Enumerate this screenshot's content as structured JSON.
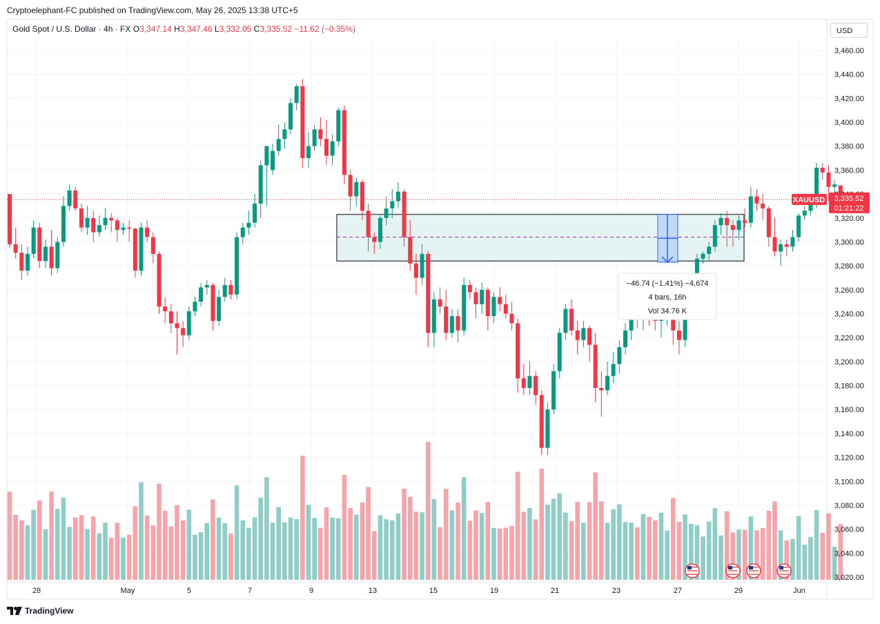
{
  "header": {
    "published": "Cryptoelephant-FC published on TradingView.com, May 26, 2025 13:38 UTC+5"
  },
  "symbol": {
    "name": "Gold Spot / U.S. Dollar · 4h · FX",
    "o_label": "O",
    "o_value": "3,347.14",
    "h_label": "H",
    "h_value": "3,347.46",
    "l_label": "L",
    "l_value": "3,332.05",
    "c_label": "C",
    "c_value": "3,335.52",
    "change": "−11.62 (−0.35%)"
  },
  "currency": "USD",
  "last_price": {
    "ticker": "XAUUSD",
    "price": "3,335.52",
    "countdown": "01:21:22"
  },
  "measure": {
    "line1": "−46.74 (−1.41%) −4,674",
    "line2": "4 bars, 16h",
    "line3": "Vol 34.76 K"
  },
  "footer": {
    "brand": "TradingView"
  },
  "colors": {
    "up": "#089981",
    "down": "#f23645",
    "vol_up": "#8fcdc6",
    "vol_down": "#f5a5a9",
    "zone_fill": "#e2f3f1",
    "zone_border": "#50535e",
    "measure_fill": "#bcd4f5",
    "measure_line": "#2962ff"
  },
  "chart_data": {
    "type": "candlestick",
    "title": "Gold Spot / U.S. Dollar · 4h · FX",
    "y_ticks": [
      "3,460.00",
      "3,440.00",
      "3,420.00",
      "3,400.00",
      "3,380.00",
      "3,360.00",
      "3,340.00",
      "3,320.00",
      "3,300.00",
      "3,280.00",
      "3,260.00",
      "3,240.00",
      "3,220.00",
      "3,200.00",
      "3,180.00",
      "3,160.00",
      "3,140.00",
      "3,120.00",
      "3,100.00",
      "3,080.00",
      "3,060.00",
      "3,040.00",
      "3,020.00"
    ],
    "x_ticks": [
      "28",
      "May",
      "5",
      "7",
      "9",
      "13",
      "15",
      "19",
      "21",
      "23",
      "27",
      "29",
      "Jun"
    ],
    "ylim": [
      3015,
      3470
    ],
    "candles": [
      [
        3340,
        3340,
        3295,
        3298
      ],
      [
        3298,
        3312,
        3286,
        3291
      ],
      [
        3291,
        3298,
        3268,
        3276
      ],
      [
        3276,
        3296,
        3272,
        3290
      ],
      [
        3290,
        3318,
        3286,
        3312
      ],
      [
        3312,
        3316,
        3278,
        3284
      ],
      [
        3284,
        3302,
        3278,
        3296
      ],
      [
        3296,
        3310,
        3272,
        3278
      ],
      [
        3278,
        3304,
        3274,
        3300
      ],
      [
        3300,
        3338,
        3296,
        3330
      ],
      [
        3330,
        3348,
        3326,
        3343
      ],
      [
        3343,
        3346,
        3326,
        3328
      ],
      [
        3328,
        3332,
        3308,
        3312
      ],
      [
        3312,
        3330,
        3306,
        3320
      ],
      [
        3320,
        3326,
        3300,
        3308
      ],
      [
        3308,
        3322,
        3304,
        3314
      ],
      [
        3314,
        3328,
        3310,
        3320
      ],
      [
        3320,
        3324,
        3308,
        3318
      ],
      [
        3318,
        3320,
        3300,
        3310
      ],
      [
        3310,
        3316,
        3306,
        3312
      ],
      [
        3312,
        3318,
        3300,
        3311
      ],
      [
        3311,
        3312,
        3270,
        3276
      ],
      [
        3276,
        3316,
        3272,
        3312
      ],
      [
        3312,
        3318,
        3300,
        3304
      ],
      [
        3304,
        3308,
        3282,
        3290
      ],
      [
        3290,
        3292,
        3240,
        3246
      ],
      [
        3246,
        3254,
        3232,
        3242
      ],
      [
        3242,
        3248,
        3224,
        3232
      ],
      [
        3232,
        3242,
        3206,
        3228
      ],
      [
        3228,
        3234,
        3212,
        3222
      ],
      [
        3222,
        3246,
        3218,
        3242
      ],
      [
        3242,
        3254,
        3238,
        3250
      ],
      [
        3250,
        3266,
        3246,
        3262
      ],
      [
        3262,
        3268,
        3256,
        3264
      ],
      [
        3264,
        3266,
        3226,
        3234
      ],
      [
        3234,
        3260,
        3230,
        3254
      ],
      [
        3254,
        3270,
        3250,
        3264
      ],
      [
        3264,
        3268,
        3252,
        3256
      ],
      [
        3256,
        3308,
        3252,
        3304
      ],
      [
        3304,
        3316,
        3298,
        3312
      ],
      [
        3312,
        3326,
        3306,
        3316
      ],
      [
        3316,
        3340,
        3312,
        3332
      ],
      [
        3332,
        3368,
        3320,
        3364
      ],
      [
        3364,
        3378,
        3330,
        3380
      ],
      [
        3360,
        3382,
        3356,
        3376
      ],
      [
        3376,
        3398,
        3372,
        3386
      ],
      [
        3386,
        3400,
        3378,
        3394
      ],
      [
        3394,
        3420,
        3390,
        3416
      ],
      [
        3416,
        3432,
        3410,
        3430
      ],
      [
        3430,
        3436,
        3362,
        3370
      ],
      [
        3370,
        3392,
        3362,
        3380
      ],
      [
        3380,
        3398,
        3376,
        3394
      ],
      [
        3394,
        3404,
        3380,
        3386
      ],
      [
        3386,
        3402,
        3364,
        3372
      ],
      [
        3372,
        3390,
        3364,
        3384
      ],
      [
        3384,
        3412,
        3380,
        3410
      ],
      [
        3410,
        3414,
        3348,
        3356
      ],
      [
        3356,
        3360,
        3326,
        3338
      ],
      [
        3338,
        3354,
        3330,
        3350
      ],
      [
        3350,
        3352,
        3318,
        3326
      ],
      [
        3326,
        3332,
        3292,
        3304
      ],
      [
        3304,
        3308,
        3290,
        3300
      ],
      [
        3300,
        3322,
        3294,
        3320
      ],
      [
        3320,
        3338,
        3314,
        3328
      ],
      [
        3328,
        3344,
        3320,
        3334
      ],
      [
        3334,
        3350,
        3328,
        3342
      ],
      [
        3342,
        3344,
        3296,
        3304
      ],
      [
        3304,
        3318,
        3276,
        3282
      ],
      [
        3282,
        3290,
        3256,
        3270
      ],
      [
        3270,
        3298,
        3264,
        3290
      ],
      [
        3290,
        3292,
        3212,
        3224
      ],
      [
        3224,
        3258,
        3212,
        3252
      ],
      [
        3252,
        3262,
        3240,
        3246
      ],
      [
        3246,
        3260,
        3218,
        3224
      ],
      [
        3224,
        3244,
        3220,
        3238
      ],
      [
        3238,
        3244,
        3216,
        3226
      ],
      [
        3226,
        3270,
        3222,
        3264
      ],
      [
        3264,
        3268,
        3252,
        3258
      ],
      [
        3258,
        3262,
        3236,
        3248
      ],
      [
        3248,
        3266,
        3240,
        3260
      ],
      [
        3260,
        3262,
        3226,
        3238
      ],
      [
        3238,
        3258,
        3232,
        3254
      ],
      [
        3254,
        3262,
        3242,
        3248
      ],
      [
        3248,
        3256,
        3236,
        3240
      ],
      [
        3240,
        3250,
        3226,
        3232
      ],
      [
        3232,
        3236,
        3174,
        3186
      ],
      [
        3186,
        3198,
        3172,
        3178
      ],
      [
        3178,
        3200,
        3172,
        3188
      ],
      [
        3188,
        3192,
        3164,
        3172
      ],
      [
        3172,
        3176,
        3122,
        3128
      ],
      [
        3128,
        3166,
        3122,
        3160
      ],
      [
        3160,
        3198,
        3156,
        3192
      ],
      [
        3192,
        3228,
        3186,
        3224
      ],
      [
        3224,
        3248,
        3218,
        3244
      ],
      [
        3244,
        3252,
        3222,
        3226
      ],
      [
        3226,
        3234,
        3206,
        3218
      ],
      [
        3218,
        3234,
        3212,
        3228
      ],
      [
        3228,
        3230,
        3200,
        3214
      ],
      [
        3214,
        3224,
        3166,
        3178
      ],
      [
        3178,
        3192,
        3154,
        3176
      ],
      [
        3176,
        3200,
        3172,
        3188
      ],
      [
        3188,
        3208,
        3182,
        3198
      ],
      [
        3198,
        3218,
        3190,
        3212
      ],
      [
        3212,
        3232,
        3206,
        3226
      ],
      [
        3226,
        3248,
        3218,
        3244
      ],
      [
        3244,
        3252,
        3228,
        3236
      ],
      [
        3236,
        3250,
        3226,
        3246
      ],
      [
        3246,
        3252,
        3230,
        3240
      ],
      [
        3240,
        3246,
        3226,
        3234
      ],
      [
        3234,
        3242,
        3220,
        3236
      ],
      [
        3236,
        3250,
        3230,
        3236
      ],
      [
        3236,
        3248,
        3214,
        3226
      ],
      [
        3226,
        3234,
        3206,
        3218
      ],
      [
        3218,
        3248,
        3212,
        3244
      ],
      [
        3244,
        3268,
        3240,
        3266
      ],
      [
        3266,
        3290,
        3262,
        3286
      ],
      [
        3286,
        3292,
        3282,
        3290
      ],
      [
        3290,
        3300,
        3284,
        3296
      ],
      [
        3296,
        3318,
        3292,
        3314
      ],
      [
        3314,
        3324,
        3306,
        3320
      ],
      [
        3320,
        3326,
        3296,
        3314
      ],
      [
        3314,
        3318,
        3296,
        3310
      ],
      [
        3310,
        3322,
        3302,
        3318
      ],
      [
        3318,
        3328,
        3312,
        3316
      ],
      [
        3316,
        3346,
        3312,
        3338
      ],
      [
        3338,
        3344,
        3326,
        3332
      ],
      [
        3332,
        3340,
        3318,
        3328
      ],
      [
        3328,
        3330,
        3296,
        3304
      ],
      [
        3304,
        3320,
        3288,
        3292
      ],
      [
        3292,
        3302,
        3280,
        3298
      ],
      [
        3298,
        3302,
        3288,
        3296
      ],
      [
        3296,
        3310,
        3292,
        3304
      ],
      [
        3304,
        3324,
        3300,
        3322
      ],
      [
        3322,
        3330,
        3318,
        3326
      ],
      [
        3326,
        3334,
        3322,
        3332
      ],
      [
        3332,
        3366,
        3328,
        3362
      ],
      [
        3362,
        3366,
        3352,
        3358
      ],
      [
        3358,
        3364,
        3334,
        3346
      ],
      [
        3346,
        3352,
        3340,
        3348
      ],
      [
        3347.14,
        3347.46,
        3332.05,
        3335.52
      ]
    ],
    "volume_note": "volume histogram at bottom of chart",
    "rectangle_zone": {
      "top": 3323,
      "bottom": 3284,
      "mid": 3304
    },
    "measurement": {
      "change": "−46.74",
      "percent": "−1.41%",
      "ticks": "−4,674",
      "bars": 4,
      "duration": "16h",
      "volume": "34.76 K"
    }
  }
}
